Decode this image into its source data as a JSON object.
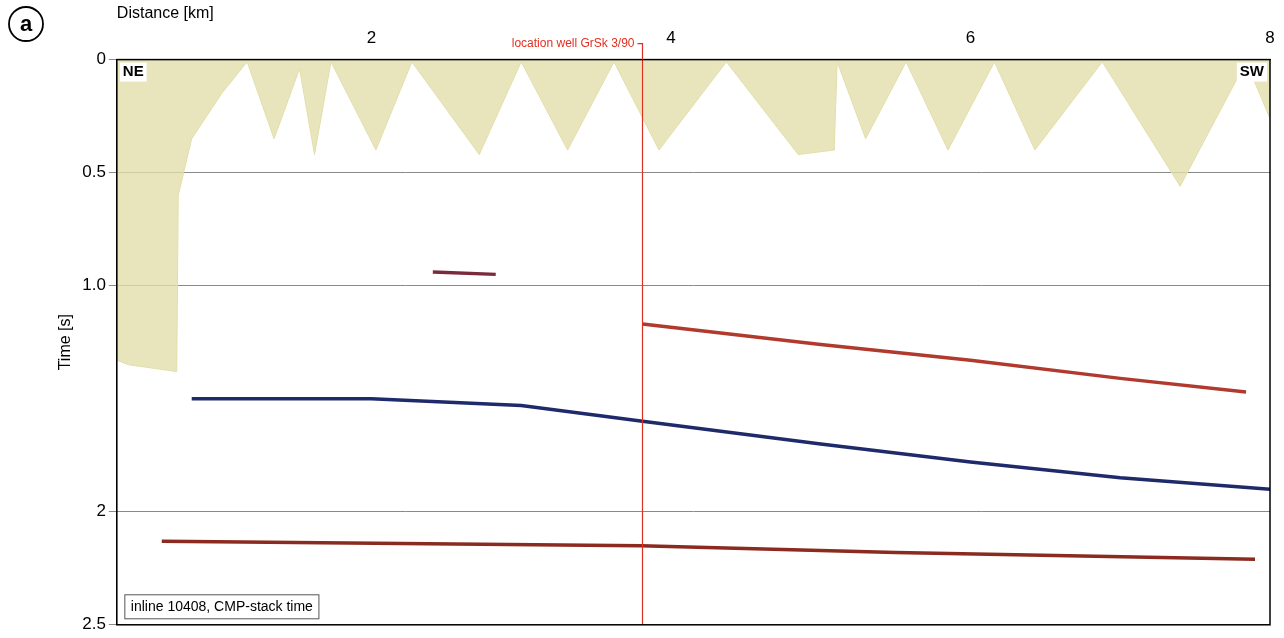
{
  "chart_data": {
    "type": "line",
    "panel_label": "a",
    "x_label": "Distance [km]",
    "y_label": "Time [s]",
    "left_label": "NE",
    "right_label": "SW",
    "note": "inline 10408, CMP-stack time",
    "xlim": [
      0.3,
      8
    ],
    "xticks": [
      2,
      4,
      6,
      8
    ],
    "ylim": [
      0,
      2.5
    ],
    "yticks": [
      0,
      0.5,
      {
        "value": 1,
        "label": "1.0"
      },
      2,
      2.5
    ],
    "grid": true,
    "vertical_lines": [
      {
        "x": 3.81,
        "label": "location well GrSk 3/90",
        "color": "#e03020"
      }
    ],
    "series": [
      {
        "type": "area",
        "color": "#e2deab",
        "x": [
          0.3,
          0.38,
          0.7,
          0.71,
          0.8,
          1.0,
          1.17,
          1.35,
          1.52,
          1.62,
          1.73,
          2.03,
          2.27,
          2.72,
          3.0,
          3.31,
          3.62,
          3.92,
          4.37,
          4.85,
          5.09,
          5.11,
          5.3,
          5.57,
          5.85,
          6.16,
          6.43,
          6.88,
          7.4,
          7.84,
          8.0
        ],
        "values": [
          1.33,
          1.35,
          1.38,
          0.6,
          0.35,
          0.15,
          0.01,
          0.35,
          0.04,
          0.42,
          0.01,
          0.4,
          0.01,
          0.42,
          0.01,
          0.4,
          0.01,
          0.4,
          0.01,
          0.42,
          0.4,
          0.01,
          0.35,
          0.01,
          0.4,
          0.01,
          0.4,
          0.01,
          0.56,
          0.01,
          0.26
        ]
      },
      {
        "color": "#b03a2e",
        "x": [
          3.81,
          5.0,
          6.0,
          7.0,
          7.84
        ],
        "values": [
          1.17,
          1.26,
          1.33,
          1.41,
          1.47
        ]
      },
      {
        "color": "#1f2a6b",
        "x": [
          0.8,
          2.0,
          3.0,
          3.81,
          5.0,
          6.0,
          7.0,
          8.0
        ],
        "values": [
          1.5,
          1.5,
          1.53,
          1.6,
          1.7,
          1.78,
          1.85,
          1.9
        ]
      },
      {
        "color": "#8b2a1e",
        "x": [
          0.6,
          3.8,
          5.5,
          7.9
        ],
        "values": [
          2.13,
          2.15,
          2.18,
          2.21
        ]
      },
      {
        "color": "#7a2a3a",
        "x": [
          2.41,
          2.83
        ],
        "values": [
          0.94,
          0.95
        ]
      }
    ]
  }
}
